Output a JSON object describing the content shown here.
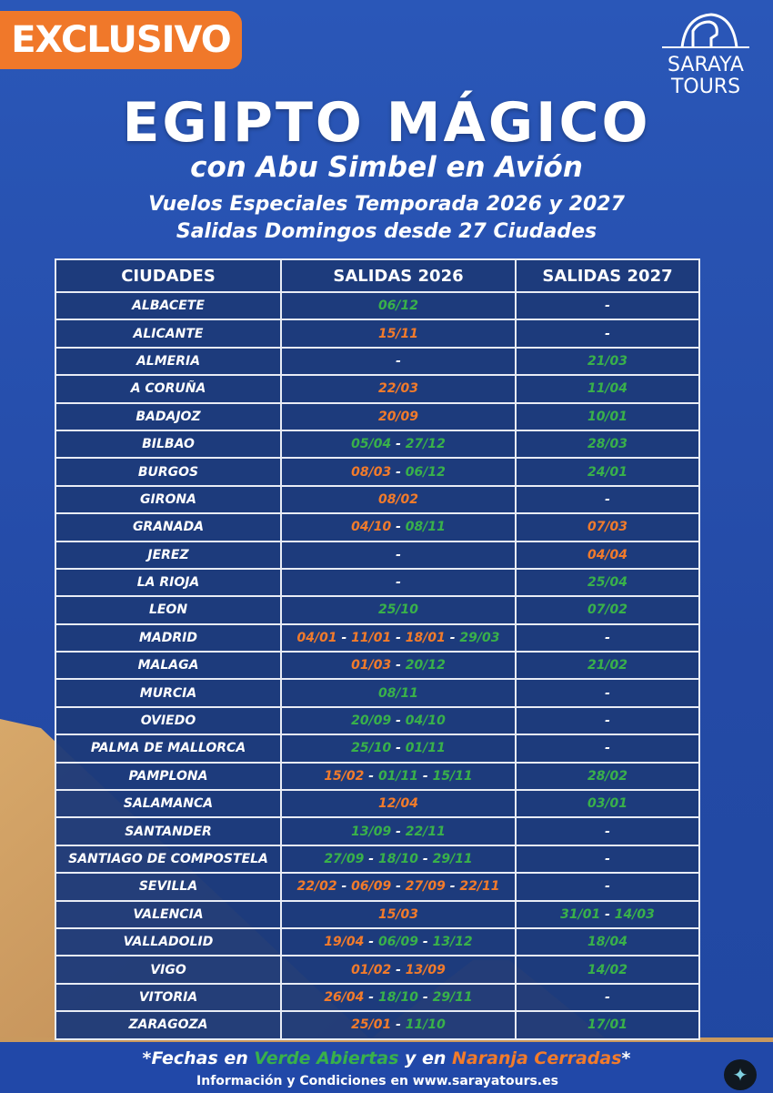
{
  "badge": "EXCLUSIVO",
  "logo": {
    "line1": "SARAYA",
    "line2": "TOURS",
    "icon": "horus-temple-icon"
  },
  "title": "EGIPTO MÁGICO",
  "subtitle": "con Abu Simbel en Avión",
  "line3": "Vuelos Especiales Temporada 2026 y 2027",
  "line4": "Salidas Domingos desde 27 Ciudades",
  "colors": {
    "open": "#39b14a",
    "closed": "#f27b2b",
    "background": "#2b55b3",
    "cell": "#1d3a7a"
  },
  "table": {
    "headers": [
      "CIUDADES",
      "SALIDAS 2026",
      "SALIDAS 2027"
    ],
    "rows": [
      {
        "city": "ALBACETE",
        "d2026": [
          [
            "06/12",
            "g"
          ]
        ],
        "d2027": []
      },
      {
        "city": "ALICANTE",
        "d2026": [
          [
            "15/11",
            "o"
          ]
        ],
        "d2027": []
      },
      {
        "city": "ALMERIA",
        "d2026": [],
        "d2027": [
          [
            "21/03",
            "g"
          ]
        ]
      },
      {
        "city": "A CORUÑA",
        "d2026": [
          [
            "22/03",
            "o"
          ]
        ],
        "d2027": [
          [
            "11/04",
            "g"
          ]
        ]
      },
      {
        "city": "BADAJOZ",
        "d2026": [
          [
            "20/09",
            "o"
          ]
        ],
        "d2027": [
          [
            "10/01",
            "g"
          ]
        ]
      },
      {
        "city": "BILBAO",
        "d2026": [
          [
            "05/04",
            "g"
          ],
          [
            "27/12",
            "g"
          ]
        ],
        "d2027": [
          [
            "28/03",
            "g"
          ]
        ]
      },
      {
        "city": "BURGOS",
        "d2026": [
          [
            "08/03",
            "o"
          ],
          [
            "06/12",
            "g"
          ]
        ],
        "d2027": [
          [
            "24/01",
            "g"
          ]
        ]
      },
      {
        "city": "GIRONA",
        "d2026": [
          [
            "08/02",
            "o"
          ]
        ],
        "d2027": []
      },
      {
        "city": "GRANADA",
        "d2026": [
          [
            "04/10",
            "o"
          ],
          [
            "08/11",
            "g"
          ]
        ],
        "d2027": [
          [
            "07/03",
            "o"
          ]
        ]
      },
      {
        "city": "JEREZ",
        "d2026": [],
        "d2027": [
          [
            "04/04",
            "o"
          ]
        ]
      },
      {
        "city": "LA RIOJA",
        "d2026": [],
        "d2027": [
          [
            "25/04",
            "g"
          ]
        ]
      },
      {
        "city": "LEON",
        "d2026": [
          [
            "25/10",
            "g"
          ]
        ],
        "d2027": [
          [
            "07/02",
            "g"
          ]
        ]
      },
      {
        "city": "MADRID",
        "d2026": [
          [
            "04/01",
            "o"
          ],
          [
            "11/01",
            "o"
          ],
          [
            "18/01",
            "o"
          ],
          [
            "29/03",
            "g"
          ]
        ],
        "d2027": []
      },
      {
        "city": "MALAGA",
        "d2026": [
          [
            "01/03",
            "o"
          ],
          [
            "20/12",
            "g"
          ]
        ],
        "d2027": [
          [
            "21/02",
            "g"
          ]
        ]
      },
      {
        "city": "MURCIA",
        "d2026": [
          [
            "08/11",
            "g"
          ]
        ],
        "d2027": []
      },
      {
        "city": "OVIEDO",
        "d2026": [
          [
            "20/09",
            "g"
          ],
          [
            "04/10",
            "g"
          ]
        ],
        "d2027": []
      },
      {
        "city": "PALMA DE  MALLORCA",
        "d2026": [
          [
            "25/10",
            "g"
          ],
          [
            "01/11",
            "g"
          ]
        ],
        "d2027": []
      },
      {
        "city": "PAMPLONA",
        "d2026": [
          [
            "15/02",
            "o"
          ],
          [
            "01/11",
            "g"
          ],
          [
            "15/11",
            "g"
          ]
        ],
        "d2027": [
          [
            "28/02",
            "g"
          ]
        ]
      },
      {
        "city": "SALAMANCA",
        "d2026": [
          [
            "12/04",
            "o"
          ]
        ],
        "d2027": [
          [
            "03/01",
            "g"
          ]
        ]
      },
      {
        "city": "SANTANDER",
        "d2026": [
          [
            "13/09",
            "g"
          ],
          [
            "22/11",
            "g"
          ]
        ],
        "d2027": []
      },
      {
        "city": "SANTIAGO DE COMPOSTELA",
        "d2026": [
          [
            "27/09",
            "g"
          ],
          [
            "18/10",
            "g"
          ],
          [
            "29/11",
            "g"
          ]
        ],
        "d2027": []
      },
      {
        "city": "SEVILLA",
        "d2026": [
          [
            "22/02",
            "o"
          ],
          [
            "06/09",
            "o"
          ],
          [
            "27/09",
            "o"
          ],
          [
            "22/11",
            "o"
          ]
        ],
        "d2027": []
      },
      {
        "city": "VALENCIA",
        "d2026": [
          [
            "15/03",
            "o"
          ]
        ],
        "d2027": [
          [
            "31/01",
            "g"
          ],
          [
            "14/03",
            "g"
          ]
        ]
      },
      {
        "city": "VALLADOLID",
        "d2026": [
          [
            "19/04",
            "o"
          ],
          [
            "06/09",
            "g"
          ],
          [
            "13/12",
            "g"
          ]
        ],
        "d2027": [
          [
            "18/04",
            "g"
          ]
        ]
      },
      {
        "city": "VIGO",
        "d2026": [
          [
            "01/02",
            "o"
          ],
          [
            "13/09",
            "o"
          ]
        ],
        "d2027": [
          [
            "14/02",
            "g"
          ]
        ]
      },
      {
        "city": "VITORIA",
        "d2026": [
          [
            "26/04",
            "o"
          ],
          [
            "18/10",
            "g"
          ],
          [
            "29/11",
            "g"
          ]
        ],
        "d2027": []
      },
      {
        "city": "ZARAGOZA",
        "d2026": [
          [
            "25/01",
            "o"
          ],
          [
            "11/10",
            "g"
          ]
        ],
        "d2027": [
          [
            "17/01",
            "g"
          ]
        ]
      }
    ]
  },
  "empty_mark": "-",
  "separator": " - ",
  "footer": {
    "prefix": "*Fechas en ",
    "open": "Verde Abiertas",
    "middle": " y en ",
    "closed": "Naranja Cerradas",
    "suffix": "*",
    "info": "Información y Condiciones en www.sarayatours.es"
  }
}
